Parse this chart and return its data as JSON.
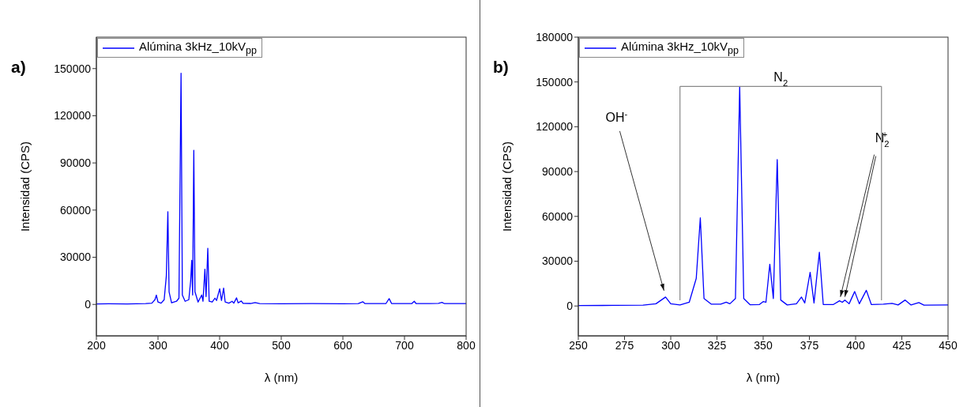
{
  "chart_data": [
    {
      "type": "line",
      "title": "a)",
      "xlabel": "λ (nm)",
      "ylabel": "Intensidad (CPS)",
      "xlim": [
        200,
        800
      ],
      "xticks": [
        200,
        300,
        400,
        500,
        600,
        700,
        800
      ],
      "ylim": [
        -20000,
        170000
      ],
      "yticks": [
        0,
        30000,
        60000,
        90000,
        120000,
        150000
      ],
      "grid": false,
      "legend": "top left",
      "marker": "none",
      "line_style": "solid",
      "series": [
        {
          "name": "Alúmina 3kHz_10kV$_{pp}$",
          "color": "#0000ff",
          "x": [
            200,
            220,
            250,
            280,
            290,
            295,
            297.3,
            300,
            305,
            310,
            313.5,
            316,
            318,
            322,
            330,
            334,
            337.4,
            339.5,
            344,
            350,
            353,
            354.7,
            356.2,
            358.1,
            360,
            365,
            371,
            373,
            376.1,
            378,
            380.8,
            383,
            388,
            392.4,
            395,
            400.1,
            403,
            406.5,
            409,
            415,
            420.3,
            423,
            427.5,
            430,
            435.2,
            438,
            450,
            457.5,
            465,
            500,
            550,
            600,
            625,
            632.3,
            636,
            670,
            675.1,
            679,
            700,
            712,
            715.8,
            719,
            740,
            755,
            760.8,
            765,
            800
          ],
          "values": [
            300,
            400,
            300,
            500,
            800,
            3000,
            5900,
            1500,
            800,
            3000,
            18000,
            59000,
            8000,
            1000,
            2000,
            4000,
            147000,
            6000,
            2000,
            3000,
            15000,
            28000,
            6000,
            98000,
            8000,
            1500,
            6000,
            2000,
            22400,
            5000,
            35700,
            2000,
            1500,
            4000,
            2500,
            10000,
            2500,
            10400,
            1500,
            800,
            2000,
            800,
            4200,
            1000,
            2200,
            700,
            600,
            1200,
            500,
            400,
            500,
            400,
            500,
            1700,
            500,
            600,
            3700,
            600,
            500,
            600,
            2000,
            500,
            500,
            700,
            1300,
            500,
            500
          ]
        }
      ]
    },
    {
      "type": "line",
      "title": "b)",
      "xlabel": "λ (nm)",
      "ylabel": "Intensidad (CPS)",
      "xlim": [
        250,
        450
      ],
      "xticks": [
        250,
        275,
        300,
        325,
        350,
        375,
        400,
        425,
        450
      ],
      "ylim": [
        -20000,
        180000
      ],
      "yticks": [
        0,
        30000,
        60000,
        90000,
        120000,
        150000,
        180000
      ],
      "grid": false,
      "legend": "top left",
      "marker": "none",
      "line_style": "solid",
      "annotations": [
        {
          "text": "OH$^{-}$",
          "x": 297.2,
          "y": 6000
        },
        {
          "text": "N$_{2}$$^{+}$",
          "x": 393,
          "y": 4000
        }
      ],
      "ref_lines": [
        {
          "axis": "x",
          "value": 305,
          "color": "#888888"
        },
        {
          "axis": "x",
          "value": 414,
          "color": "#888888"
        },
        {
          "axis": "y",
          "value": 147000,
          "label": "N$_{2}$",
          "color": "#888888"
        }
      ],
      "series": [
        {
          "name": "Alúmina 3kHz_10kV$_{pp}$",
          "color": "#0000ff",
          "x": [
            250,
            270,
            285,
            292,
            297.2,
            300,
            305,
            310,
            313.8,
            316,
            318,
            322,
            327,
            330,
            332,
            335,
            337.3,
            339.5,
            343,
            348,
            350.1,
            351.5,
            353.6,
            355.5,
            357.6,
            359.5,
            363,
            368,
            370.7,
            372.5,
            375.4,
            377.5,
            380.4,
            382.5,
            388,
            391.3,
            392.8,
            394.2,
            396.5,
            399.5,
            402,
            405.8,
            408.5,
            415,
            419.7,
            423,
            426.8,
            430,
            434.2,
            437,
            450
          ],
          "values": [
            300,
            400,
            600,
            1500,
            6000,
            1500,
            700,
            2500,
            18500,
            59000,
            5000,
            1200,
            1200,
            2500,
            1500,
            5000,
            147000,
            5000,
            800,
            1000,
            3000,
            2500,
            28000,
            5000,
            98000,
            4000,
            700,
            1500,
            6000,
            2000,
            22500,
            2000,
            36000,
            1000,
            1000,
            3500,
            2500,
            4000,
            1500,
            9700,
            1500,
            10500,
            1000,
            1200,
            1800,
            700,
            4000,
            700,
            2300,
            600,
            700
          ]
        }
      ]
    }
  ]
}
